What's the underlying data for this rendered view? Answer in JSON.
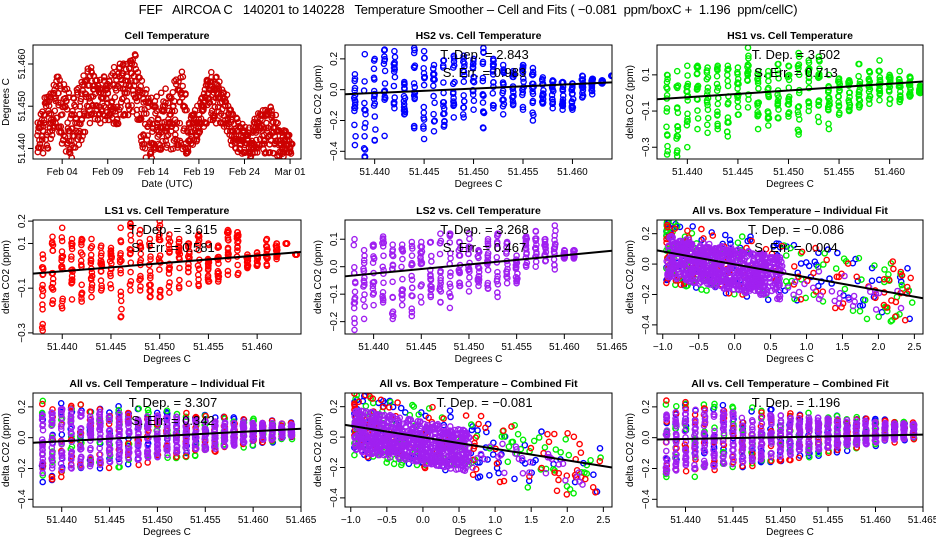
{
  "title": "FEF   AIRCOA C   140201 to 140228   Temperature Smoother – Cell and Fits ( −0.081  ppm/boxC +  1.196  ppm/cellC)",
  "colors": {
    "HS2": "#0000ff",
    "HS1": "#00ee00",
    "LS1": "#ff0000",
    "LS2": "#a020f0",
    "cell": "#cc0000",
    "fit": "#000000"
  },
  "chart_data": [
    {
      "id": "cell-temperature",
      "type": "scatter",
      "title": "Cell Temperature",
      "xlabel": "Date (UTC)",
      "ylabel": "Degrees C",
      "x_ticks": [
        "Feb 04",
        "Feb 09",
        "Feb 14",
        "Feb 19",
        "Feb 24",
        "Mar 01"
      ],
      "x_tick_days": [
        3,
        8,
        13,
        18,
        23,
        28
      ],
      "xlim_days": [
        -0.2,
        29.2
      ],
      "y_ticks": [
        "51.440",
        "51.450",
        "51.460"
      ],
      "y_tick_values": [
        51.44,
        51.45,
        51.46
      ],
      "ylim": [
        51.4375,
        51.4645
      ],
      "series": [
        {
          "name": "cell",
          "color_key": "cell",
          "profile_days": [
            0.5,
            1,
            2,
            3,
            4,
            5,
            6,
            7,
            8,
            9,
            10,
            11,
            12,
            13,
            14,
            15,
            16,
            17,
            18,
            19,
            20,
            21,
            22,
            23,
            24,
            25,
            26,
            27,
            28
          ],
          "profile_low": [
            51.438,
            51.439,
            51.441,
            51.44,
            51.438,
            51.441,
            51.446,
            51.446,
            51.447,
            51.445,
            51.447,
            51.449,
            51.438,
            51.438,
            51.439,
            51.44,
            51.438,
            51.438,
            51.443,
            51.446,
            51.446,
            51.444,
            51.439,
            51.438,
            51.438,
            51.438,
            51.438,
            51.438,
            51.438
          ],
          "profile_high": [
            51.446,
            51.452,
            51.458,
            51.456,
            51.452,
            51.456,
            51.46,
            51.456,
            51.459,
            51.46,
            51.461,
            51.463,
            51.455,
            51.452,
            51.453,
            51.455,
            51.46,
            51.447,
            51.451,
            51.458,
            51.458,
            51.453,
            51.448,
            51.445,
            51.446,
            51.45,
            51.45,
            51.445,
            51.443
          ]
        }
      ]
    },
    {
      "id": "hs2-vs-cell",
      "type": "scatter",
      "title": "HS2 vs. Cell Temperature",
      "xlabel": "Degrees C",
      "ylabel": "delta CO2 (ppm)",
      "x_ticks": [
        "51.440",
        "51.445",
        "51.450",
        "51.455",
        "51.460"
      ],
      "x_tick_values": [
        51.44,
        51.445,
        51.45,
        51.455,
        51.46
      ],
      "xlim": [
        51.437,
        51.464
      ],
      "y_ticks": [
        "−0.4",
        "−0.2",
        "0.0",
        "0.2"
      ],
      "y_tick_values": [
        -0.4,
        -0.2,
        0.0,
        0.2
      ],
      "ylim": [
        -0.45,
        0.29
      ],
      "annotation": [
        "T. Dep. =  2.843",
        "S. Err. = 0.983"
      ],
      "fit": {
        "slope_ppm_per_C": 2.843,
        "y_at_xmin": -0.03,
        "y_at_xmax": 0.047
      },
      "series": [
        {
          "name": "HS2",
          "color_key": "HS2",
          "spread_low": [
            -0.36,
            -0.44,
            -0.33,
            -0.3,
            -0.12,
            -0.16,
            -0.25,
            -0.32,
            -0.27,
            -0.24,
            -0.18,
            -0.18,
            -0.13,
            -0.25,
            -0.12,
            -0.16,
            -0.1,
            -0.13,
            -0.2,
            -0.09,
            -0.12,
            -0.13,
            -0.13,
            -0.05,
            -0.03,
            0.04,
            0.09
          ],
          "spread_high": [
            0.1,
            0.23,
            0.2,
            0.26,
            0.25,
            0.05,
            0.27,
            0.25,
            0.16,
            0.19,
            0.22,
            0.22,
            0.2,
            0.27,
            0.2,
            0.16,
            0.12,
            0.16,
            0.14,
            0.08,
            0.06,
            0.05,
            0.04,
            0.09,
            0.07,
            0.06,
            0.09
          ]
        }
      ]
    },
    {
      "id": "hs1-vs-cell",
      "type": "scatter",
      "title": "HS1 vs. Cell Temperature",
      "xlabel": "Degrees C",
      "ylabel": "delta CO2 (ppm)",
      "x_ticks": [
        "51.440",
        "51.445",
        "51.450",
        "51.455",
        "51.460"
      ],
      "x_tick_values": [
        51.44,
        51.445,
        51.45,
        51.455,
        51.46
      ],
      "xlim": [
        51.437,
        51.4633
      ],
      "y_ticks": [
        "−0.3",
        "−0.1",
        "0.1"
      ],
      "y_tick_values": [
        -0.3,
        -0.1,
        0.1
      ],
      "ylim": [
        -0.365,
        0.265
      ],
      "annotation": [
        "T. Dep. =  3.502",
        "S. Err. = 0.713"
      ],
      "fit": {
        "slope_ppm_per_C": 3.502,
        "y_at_xmin": -0.035,
        "y_at_xmax": 0.063
      },
      "series": [
        {
          "name": "HS1",
          "color_key": "HS1",
          "spread_low": [
            -0.34,
            -0.35,
            -0.3,
            -0.2,
            -0.22,
            -0.2,
            -0.24,
            -0.12,
            -0.08,
            -0.2,
            -0.18,
            -0.14,
            -0.13,
            -0.23,
            -0.1,
            -0.16,
            -0.2,
            -0.12,
            -0.1,
            -0.08,
            -0.06,
            -0.04,
            -0.06,
            -0.05,
            -0.02,
            0.0,
            0.01
          ],
          "spread_high": [
            0.1,
            0.12,
            0.15,
            0.15,
            0.14,
            0.15,
            0.15,
            0.14,
            0.25,
            0.12,
            0.12,
            0.16,
            0.15,
            0.22,
            0.18,
            0.2,
            0.1,
            0.08,
            0.07,
            0.16,
            0.12,
            0.18,
            0.1,
            0.12,
            0.09,
            0.04,
            0.07
          ]
        }
      ]
    },
    {
      "id": "ls1-vs-cell",
      "type": "scatter",
      "title": "LS1 vs. Cell Temperature",
      "xlabel": "Degrees C",
      "ylabel": "delta CO2 (ppm)",
      "x_ticks": [
        "51.440",
        "51.445",
        "51.450",
        "51.455",
        "51.460"
      ],
      "x_tick_values": [
        51.44,
        51.445,
        51.45,
        51.455,
        51.46
      ],
      "xlim": [
        51.437,
        51.4645
      ],
      "y_ticks": [
        "−0.3",
        "−0.1",
        "0.1",
        "0.2"
      ],
      "y_tick_values": [
        -0.3,
        -0.1,
        0.1,
        0.2
      ],
      "ylim": [
        -0.305,
        0.205
      ],
      "annotation": [
        "T. Dep. =  3.615",
        "S. Err. = 0.581"
      ],
      "fit": {
        "slope_ppm_per_C": 3.615,
        "y_at_xmin": -0.035,
        "y_at_xmax": 0.062
      },
      "series": [
        {
          "name": "LS1",
          "color_key": "LS1",
          "spread_low": [
            -0.29,
            -0.17,
            -0.19,
            -0.15,
            -0.16,
            -0.14,
            -0.11,
            -0.1,
            -0.23,
            -0.11,
            -0.11,
            -0.14,
            -0.14,
            -0.12,
            -0.1,
            -0.08,
            -0.09,
            -0.07,
            -0.07,
            -0.04,
            -0.04,
            -0.01,
            0.0,
            0.0,
            0.03,
            0.1,
            0.05
          ],
          "spread_high": [
            0.05,
            0.13,
            0.17,
            0.12,
            0.12,
            0.12,
            0.09,
            0.08,
            0.17,
            0.19,
            0.16,
            0.12,
            0.2,
            0.14,
            0.12,
            0.1,
            0.14,
            0.1,
            0.09,
            0.16,
            0.15,
            0.05,
            0.06,
            0.12,
            0.1,
            0.1,
            0.05
          ]
        }
      ]
    },
    {
      "id": "ls2-vs-cell",
      "type": "scatter",
      "title": "LS2 vs. Cell Temperature",
      "xlabel": "Degrees C",
      "ylabel": "delta CO2 (ppm)",
      "x_ticks": [
        "51.440",
        "51.445",
        "51.450",
        "51.455",
        "51.460",
        "51.465"
      ],
      "x_tick_values": [
        51.44,
        51.445,
        51.45,
        51.455,
        51.46,
        51.465
      ],
      "xlim": [
        51.437,
        51.465
      ],
      "y_ticks": [
        "−0.2",
        "−0.1",
        "0.0",
        "0.1"
      ],
      "y_tick_values": [
        -0.2,
        -0.1,
        0.0,
        0.1
      ],
      "ylim": [
        -0.245,
        0.17
      ],
      "annotation": [
        "T. Dep. =  3.268",
        "S. Err. = 0.467"
      ],
      "fit": {
        "slope_ppm_per_C": 3.268,
        "y_at_xmin": -0.035,
        "y_at_xmax": 0.058
      },
      "series": [
        {
          "name": "LS2",
          "color_key": "LS2",
          "spread_low": [
            -0.23,
            -0.19,
            -0.14,
            -0.13,
            -0.19,
            -0.14,
            -0.18,
            -0.13,
            -0.11,
            -0.13,
            -0.15,
            -0.07,
            -0.09,
            -0.07,
            -0.08,
            -0.11,
            -0.06,
            -0.06,
            0.0,
            0.0,
            0.02,
            -0.01,
            0.03,
            0.03
          ],
          "spread_high": [
            0.1,
            0.06,
            0.08,
            0.11,
            0.08,
            0.08,
            0.09,
            0.09,
            0.09,
            0.12,
            0.12,
            0.09,
            0.12,
            0.06,
            0.1,
            0.12,
            0.09,
            0.04,
            0.11,
            0.13,
            0.1,
            0.15,
            0.06,
            0.06
          ]
        }
      ]
    },
    {
      "id": "all-vs-box-individual",
      "type": "scatter",
      "title": "All vs. Box Temperature – Individual Fit",
      "xlabel": "Degrees C",
      "ylabel": "delta CO2 (ppm)",
      "x_ticks": [
        "−1.0",
        "−0.5",
        "0.0",
        "0.5",
        "1.0",
        "1.5",
        "2.0",
        "2.5"
      ],
      "x_tick_values": [
        -1.0,
        -0.5,
        0.0,
        0.5,
        1.0,
        1.5,
        2.0,
        2.5
      ],
      "xlim": [
        -1.08,
        2.62
      ],
      "y_ticks": [
        "−0.4",
        "−0.2",
        "0.0",
        "0.2"
      ],
      "y_tick_values": [
        -0.4,
        -0.2,
        0.0,
        0.2
      ],
      "ylim": [
        -0.46,
        0.29
      ],
      "annotation": [
        "T. Dep. = −0.086",
        "S. Err. = 0.004"
      ],
      "fit": {
        "slope_ppm_per_C": -0.086,
        "y_at_xmin": 0.09,
        "y_at_xmax": -0.225
      },
      "series": [
        {
          "name": "HS2",
          "color_key": "HS2"
        },
        {
          "name": "HS1",
          "color_key": "HS1"
        },
        {
          "name": "LS1",
          "color_key": "LS1"
        },
        {
          "name": "LS2",
          "color_key": "LS2"
        }
      ]
    },
    {
      "id": "all-vs-cell-individual",
      "type": "scatter",
      "title": "All vs. Cell Temperature – Individual Fit",
      "xlabel": "Degrees C",
      "ylabel": "delta CO2 (ppm)",
      "x_ticks": [
        "51.440",
        "51.445",
        "51.450",
        "51.455",
        "51.460",
        "51.465"
      ],
      "x_tick_values": [
        51.44,
        51.445,
        51.45,
        51.455,
        51.46,
        51.465
      ],
      "xlim": [
        51.437,
        51.465
      ],
      "y_ticks": [
        "−0.4",
        "−0.2",
        "0.0",
        "0.2"
      ],
      "y_tick_values": [
        -0.4,
        -0.2,
        0.0,
        0.2
      ],
      "ylim": [
        -0.45,
        0.29
      ],
      "annotation": [
        "T. Dep. =  3.307",
        "S. Err. = 0.342"
      ],
      "fit": {
        "slope_ppm_per_C": 3.307,
        "y_at_xmin": -0.033,
        "y_at_xmax": 0.058
      },
      "series": [
        {
          "name": "HS2",
          "color_key": "HS2"
        },
        {
          "name": "HS1",
          "color_key": "HS1"
        },
        {
          "name": "LS1",
          "color_key": "LS1"
        },
        {
          "name": "LS2",
          "color_key": "LS2"
        }
      ]
    },
    {
      "id": "all-vs-box-combined",
      "type": "scatter",
      "title": "All vs. Box Temperature – Combined Fit",
      "xlabel": "Degrees C",
      "ylabel": "delta CO2 (ppm)",
      "x_ticks": [
        "−1.0",
        "−0.5",
        "0.0",
        "0.5",
        "1.0",
        "1.5",
        "2.0",
        "2.5"
      ],
      "x_tick_values": [
        -1.0,
        -0.5,
        0.0,
        0.5,
        1.0,
        1.5,
        2.0,
        2.5
      ],
      "xlim": [
        -1.08,
        2.62
      ],
      "y_ticks": [
        "−0.4",
        "−0.2",
        "0.0",
        "0.2"
      ],
      "y_tick_values": [
        -0.4,
        -0.2,
        0.0,
        0.2
      ],
      "ylim": [
        -0.46,
        0.29
      ],
      "annotation": [
        "T. Dep. = −0.081"
      ],
      "fit": {
        "slope_ppm_per_C": -0.081,
        "y_at_xmin": 0.08,
        "y_at_xmax": -0.2
      },
      "series": [
        {
          "name": "HS2",
          "color_key": "HS2"
        },
        {
          "name": "HS1",
          "color_key": "HS1"
        },
        {
          "name": "LS1",
          "color_key": "LS1"
        },
        {
          "name": "LS2",
          "color_key": "LS2"
        }
      ]
    },
    {
      "id": "all-vs-cell-combined",
      "type": "scatter",
      "title": "All vs. Cell Temperature – Combined Fit",
      "xlabel": "Degrees C",
      "ylabel": "delta CO2 (ppm)",
      "x_ticks": [
        "51.440",
        "51.445",
        "51.450",
        "51.455",
        "51.460",
        "51.465"
      ],
      "x_tick_values": [
        51.44,
        51.445,
        51.45,
        51.455,
        51.46,
        51.465
      ],
      "xlim": [
        51.437,
        51.465
      ],
      "y_ticks": [
        "−0.4",
        "−0.2",
        "0.0",
        "0.2"
      ],
      "y_tick_values": [
        -0.4,
        -0.2,
        0.0,
        0.2
      ],
      "ylim": [
        -0.45,
        0.29
      ],
      "annotation": [
        "T. Dep. =  1.196"
      ],
      "fit": {
        "slope_ppm_per_C": 1.196,
        "y_at_xmin": -0.012,
        "y_at_xmax": 0.02
      },
      "series": [
        {
          "name": "HS2",
          "color_key": "HS2"
        },
        {
          "name": "HS1",
          "color_key": "HS1"
        },
        {
          "name": "LS1",
          "color_key": "LS1"
        },
        {
          "name": "LS2",
          "color_key": "LS2"
        }
      ]
    }
  ]
}
